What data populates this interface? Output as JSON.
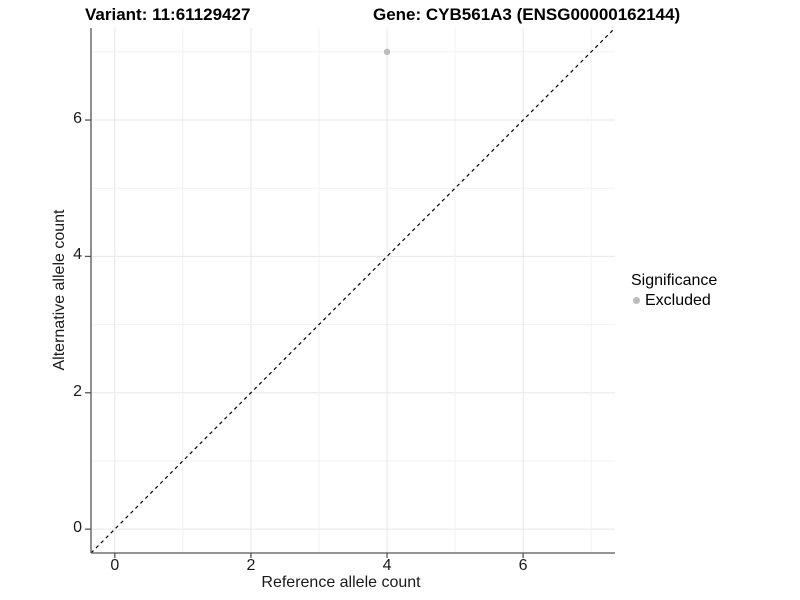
{
  "figure": {
    "background": "#ffffff",
    "title_left": "Variant: 11:61129427",
    "title_right": "Gene: CYB561A3 (ENSG00000162144)"
  },
  "chart_data": {
    "type": "scatter",
    "title_left": "Variant: 11:61129427",
    "title_right": "Gene: CYB561A3 (ENSG00000162144)",
    "xlabel": "Reference allele count",
    "ylabel": "Alternative allele count",
    "xlim": [
      -0.35,
      7.35
    ],
    "ylim": [
      -0.35,
      7.35
    ],
    "xticks": [
      0,
      2,
      4,
      6
    ],
    "yticks": [
      0,
      2,
      4,
      6
    ],
    "gridline_values": [
      0,
      1,
      2,
      3,
      4,
      5,
      6,
      7
    ],
    "grid_major_color": "#e7e7e7",
    "grid_minor_color": "#f1f1f1",
    "axis_line_color": "#555555",
    "point_color": "#bcbcbc",
    "point_radius": 3.2,
    "points": [
      {
        "x": 4,
        "y": 7,
        "significance": "Excluded"
      }
    ],
    "reference_line": {
      "kind": "identity y=x",
      "style": "dashed",
      "color": "#000000"
    },
    "legend": {
      "title": "Significance",
      "position": "right",
      "entries": [
        {
          "label": "Excluded",
          "color": "#bcbcbc"
        }
      ]
    }
  }
}
